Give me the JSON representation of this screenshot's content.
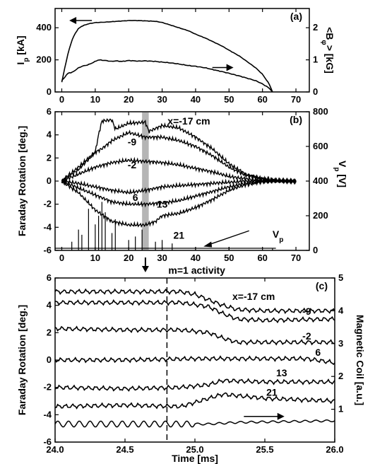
{
  "chart_data": [
    {
      "panel_label": "(a)",
      "type": "line",
      "xlim": [
        -2,
        74
      ],
      "xticks": [
        "0",
        "10",
        "20",
        "30",
        "40",
        "50",
        "60",
        "70"
      ],
      "y_left": {
        "label": "I",
        "subscript": "p",
        "unit": " [kA]",
        "ylim": [
          0,
          520
        ],
        "ticks": [
          "0",
          "200",
          "400"
        ]
      },
      "y_right": {
        "label": "<B",
        "subscript": "φ",
        "suffix": ">",
        "unit": " [kG]",
        "ylim": [
          0,
          2.6
        ],
        "ticks": [
          "0",
          "1",
          "2"
        ]
      },
      "series": [
        {
          "axis": "left",
          "x": [
            0,
            1,
            2,
            3,
            4,
            5,
            6,
            8,
            10,
            13,
            15,
            18,
            20,
            22,
            25,
            28,
            30,
            32,
            35,
            38,
            40,
            43,
            45,
            48,
            50,
            53,
            55,
            58,
            60,
            62,
            63
          ],
          "y": [
            60,
            160,
            250,
            320,
            365,
            395,
            410,
            425,
            432,
            435,
            438,
            442,
            445,
            445,
            443,
            440,
            433,
            420,
            400,
            380,
            360,
            335,
            315,
            285,
            260,
            225,
            195,
            150,
            110,
            50,
            0
          ]
        },
        {
          "axis": "right",
          "x": [
            0,
            2,
            3,
            5,
            6,
            8,
            10,
            11,
            13,
            15,
            16,
            18,
            20,
            23,
            25,
            28,
            30,
            33,
            35,
            38,
            40,
            43,
            45,
            48,
            50,
            53,
            55,
            58,
            60,
            62,
            63
          ],
          "y": [
            0.35,
            0.6,
            0.6,
            0.75,
            0.8,
            0.85,
            0.95,
            1.0,
            0.98,
            0.95,
            0.97,
            0.95,
            0.98,
            0.96,
            0.97,
            0.95,
            0.93,
            0.9,
            0.87,
            0.82,
            0.8,
            0.75,
            0.7,
            0.63,
            0.58,
            0.5,
            0.44,
            0.35,
            0.25,
            0.12,
            0.0
          ]
        }
      ]
    },
    {
      "panel_label": "(b)",
      "type": "line",
      "xlim": [
        -2,
        74
      ],
      "xticks": [
        "0",
        "10",
        "20",
        "30",
        "40",
        "50",
        "60",
        "70"
      ],
      "xtick_values": [
        0,
        10,
        20,
        30,
        40,
        50,
        60,
        70
      ],
      "y_left": {
        "label": "Faraday Rotation [deg.]",
        "ylim": [
          -6,
          6
        ],
        "ticks": [
          "-6",
          "-4",
          "-2",
          "0",
          "2",
          "4",
          "6"
        ]
      },
      "y_right": {
        "label": "V",
        "subscript": "p",
        "unit": " [V]",
        "ylim": [
          0,
          800
        ],
        "ticks": [
          "0",
          "200",
          "400",
          "600",
          "800"
        ]
      },
      "highlight_band_x": [
        24,
        26
      ],
      "series": [
        {
          "name": "x=-17 cm",
          "x": [
            0,
            5,
            10,
            11,
            12,
            15,
            16,
            20,
            25,
            26,
            30,
            35,
            40,
            45,
            50,
            55,
            60,
            65,
            70
          ],
          "y": [
            0,
            1.2,
            2.5,
            4,
            5.2,
            5.3,
            4.5,
            5,
            5.1,
            4.3,
            4.8,
            4.6,
            3.8,
            2.8,
            1.5,
            0.6,
            0.2,
            0,
            0
          ]
        },
        {
          "name": "-9",
          "x": [
            0,
            5,
            10,
            12,
            15,
            20,
            25,
            30,
            35,
            40,
            45,
            50,
            55,
            60,
            65,
            70
          ],
          "y": [
            0,
            1,
            2.5,
            2.8,
            3.5,
            4.2,
            3.8,
            3.8,
            3.5,
            3,
            2.2,
            1.2,
            0.5,
            0.2,
            0,
            0
          ]
        },
        {
          "name": "-2",
          "x": [
            0,
            5,
            10,
            15,
            20,
            25,
            30,
            35,
            40,
            45,
            50,
            55,
            60,
            70
          ],
          "y": [
            0,
            0.6,
            1.2,
            1.6,
            1.8,
            1.7,
            1.6,
            1.4,
            1.1,
            0.8,
            0.4,
            0.2,
            0,
            0
          ]
        },
        {
          "name": "6",
          "x": [
            0,
            5,
            10,
            15,
            20,
            25,
            30,
            35,
            40,
            45,
            50,
            55,
            60,
            70
          ],
          "y": [
            0,
            -0.2,
            -0.5,
            -0.8,
            -1,
            -0.8,
            -0.5,
            -0.4,
            -0.3,
            -0.2,
            -0.1,
            0,
            0,
            0
          ]
        },
        {
          "name": "13",
          "x": [
            0,
            5,
            10,
            15,
            20,
            25,
            30,
            35,
            40,
            45,
            50,
            55,
            60,
            70
          ],
          "y": [
            0,
            -0.6,
            -1.2,
            -1.8,
            -2,
            -2,
            -1.9,
            -1.7,
            -1.3,
            -0.9,
            -0.5,
            -0.2,
            0,
            0
          ]
        },
        {
          "name": "21",
          "x": [
            0,
            5,
            10,
            15,
            20,
            25,
            28,
            30,
            35,
            40,
            45,
            50,
            55,
            60,
            70
          ],
          "y": [
            0,
            -1,
            -2.5,
            -3.5,
            -3.8,
            -3.8,
            -3.5,
            -3,
            -2.8,
            -2.3,
            -1.6,
            -0.8,
            -0.3,
            0,
            0
          ]
        }
      ],
      "spikes": {
        "name": "V",
        "subscript": "p",
        "x": [
          3,
          5,
          6,
          8,
          10,
          11,
          12,
          13,
          15,
          16,
          20,
          22,
          24,
          28,
          30,
          33,
          40,
          50,
          63
        ],
        "values": [
          50,
          120,
          90,
          240,
          150,
          200,
          280,
          220,
          100,
          180,
          60,
          80,
          120,
          50,
          60,
          40,
          20,
          20,
          10
        ]
      }
    },
    {
      "panel_label": "(c)",
      "type": "line",
      "xlabel": "Time [ms]",
      "xlim": [
        24.0,
        26.0
      ],
      "xticks": [
        "24.0",
        "24.5",
        "25.0",
        "25.5",
        "26.0"
      ],
      "xtick_values": [
        24.0,
        24.5,
        25.0,
        25.5,
        26.0
      ],
      "y_left": {
        "label": "Faraday Rotation [deg.]",
        "ylim": [
          -6,
          6
        ],
        "ticks": [
          "-6",
          "-4",
          "-2",
          "0",
          "2",
          "4",
          "6"
        ]
      },
      "y_right": {
        "label": "Magnetic Coil [a.u.]",
        "ylim": [
          0,
          5
        ],
        "ticks": [
          "1",
          "2",
          "3",
          "4",
          "5"
        ]
      },
      "vline_x": 24.8,
      "annotation": "m=1 activity",
      "series": [
        {
          "name": "x=-17 cm",
          "x": [
            24.0,
            24.5,
            24.9,
            25.0,
            25.1,
            25.2,
            25.3,
            25.5,
            26.0
          ],
          "y": [
            5.0,
            5.0,
            5.0,
            4.8,
            4.4,
            4.0,
            3.7,
            3.6,
            3.6
          ]
        },
        {
          "name": "-9",
          "x": [
            24.0,
            24.5,
            24.9,
            25.1,
            25.2,
            25.3,
            25.5,
            26.0
          ],
          "y": [
            4.2,
            4.2,
            4.2,
            3.9,
            3.4,
            3.0,
            2.9,
            3.0
          ]
        },
        {
          "name": "-2",
          "x": [
            24.0,
            24.5,
            24.9,
            25.1,
            25.2,
            25.3,
            25.5,
            26.0
          ],
          "y": [
            2.3,
            2.2,
            2.2,
            2.0,
            1.6,
            1.3,
            1.3,
            1.3
          ]
        },
        {
          "name": "6",
          "x": [
            24.0,
            24.5,
            25.0,
            25.5,
            25.8,
            26.0
          ],
          "y": [
            0.0,
            0.0,
            0.1,
            0.1,
            0.1,
            -0.2
          ]
        },
        {
          "name": "13",
          "x": [
            24.0,
            24.5,
            24.9,
            25.1,
            25.2,
            25.5,
            26.0
          ],
          "y": [
            -2.0,
            -2.1,
            -2.0,
            -1.8,
            -1.5,
            -1.6,
            -1.6
          ]
        },
        {
          "name": "21",
          "x": [
            24.0,
            24.5,
            24.9,
            25.1,
            25.2,
            25.5,
            26.0
          ],
          "y": [
            -3.4,
            -3.3,
            -3.4,
            -2.8,
            -2.5,
            -2.8,
            -3.0
          ]
        }
      ],
      "coil": {
        "axis": "right",
        "x": [
          24.0,
          25.0,
          25.1,
          25.3,
          26.0
        ],
        "y": [
          0.55,
          0.55,
          0.55,
          0.6,
          0.65
        ]
      }
    }
  ]
}
